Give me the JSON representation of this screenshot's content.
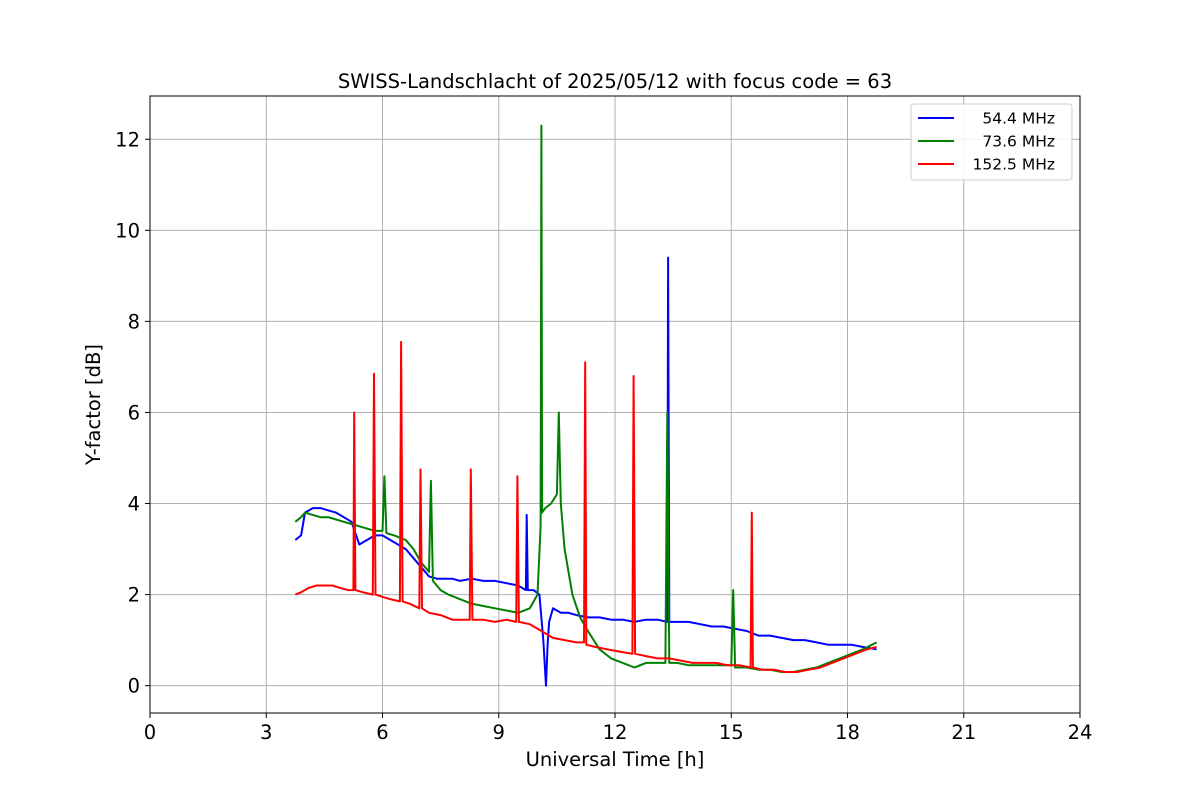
{
  "chart_data": {
    "type": "line",
    "title": "SWISS-Landschlacht of 2025/05/12 with focus code = 63",
    "xlabel": "Universal Time [h]",
    "ylabel": "Y-factor [dB]",
    "xlim": [
      0,
      24
    ],
    "ylim": [
      -0.6,
      12.95
    ],
    "xticks": [
      0,
      3,
      6,
      9,
      12,
      15,
      18,
      21,
      24
    ],
    "yticks": [
      0,
      2,
      4,
      6,
      8,
      10,
      12
    ],
    "grid": true,
    "legend_position": "top-right",
    "series": [
      {
        "name": "54.4 MHz",
        "color": "#0000ff",
        "x": [
          3.75,
          3.9,
          4.0,
          4.2,
          4.4,
          4.6,
          4.8,
          5.0,
          5.2,
          5.4,
          5.6,
          5.8,
          6.0,
          6.2,
          6.4,
          6.6,
          6.8,
          7.0,
          7.2,
          7.4,
          7.6,
          7.8,
          8.0,
          8.3,
          8.6,
          8.9,
          9.2,
          9.5,
          9.7,
          9.72,
          9.75,
          9.9,
          10.05,
          10.15,
          10.22,
          10.26,
          10.3,
          10.4,
          10.6,
          10.8,
          11.0,
          11.3,
          11.6,
          11.9,
          12.2,
          12.5,
          12.8,
          13.1,
          13.35,
          13.37,
          13.4,
          13.6,
          13.9,
          14.2,
          14.5,
          14.8,
          15.1,
          15.4,
          15.7,
          16.0,
          16.3,
          16.6,
          16.9,
          17.2,
          17.5,
          17.8,
          18.1,
          18.4,
          18.75
        ],
        "y": [
          3.2,
          3.3,
          3.8,
          3.9,
          3.9,
          3.85,
          3.8,
          3.7,
          3.6,
          3.1,
          3.2,
          3.3,
          3.3,
          3.2,
          3.1,
          3.0,
          2.8,
          2.6,
          2.4,
          2.35,
          2.35,
          2.35,
          2.3,
          2.35,
          2.3,
          2.3,
          2.25,
          2.2,
          2.1,
          3.75,
          2.1,
          2.1,
          2.0,
          1.0,
          0.0,
          0.9,
          1.4,
          1.7,
          1.6,
          1.6,
          1.55,
          1.5,
          1.5,
          1.45,
          1.45,
          1.4,
          1.45,
          1.45,
          1.4,
          9.4,
          1.4,
          1.4,
          1.4,
          1.35,
          1.3,
          1.3,
          1.25,
          1.2,
          1.1,
          1.1,
          1.05,
          1.0,
          1.0,
          0.95,
          0.9,
          0.9,
          0.9,
          0.85,
          0.8
        ]
      },
      {
        "name": "73.6 MHz",
        "color": "#008000",
        "x": [
          3.75,
          3.9,
          4.0,
          4.2,
          4.4,
          4.6,
          4.8,
          5.0,
          5.2,
          5.4,
          5.6,
          5.8,
          6.0,
          6.05,
          6.1,
          6.3,
          6.6,
          6.8,
          7.0,
          7.2,
          7.25,
          7.3,
          7.5,
          7.7,
          8.0,
          8.3,
          8.6,
          8.9,
          9.2,
          9.5,
          9.8,
          10.0,
          10.08,
          10.1,
          10.12,
          10.2,
          10.35,
          10.5,
          10.55,
          10.6,
          10.7,
          10.9,
          11.1,
          11.3,
          11.6,
          11.9,
          12.2,
          12.5,
          12.8,
          13.1,
          13.3,
          13.35,
          13.4,
          13.6,
          13.9,
          14.2,
          14.5,
          14.8,
          15.0,
          15.05,
          15.1,
          15.4,
          15.7,
          16.0,
          16.3,
          16.6,
          16.9,
          17.2,
          17.5,
          17.8,
          18.1,
          18.4,
          18.75
        ],
        "y": [
          3.6,
          3.7,
          3.8,
          3.75,
          3.7,
          3.7,
          3.65,
          3.6,
          3.55,
          3.5,
          3.45,
          3.4,
          3.4,
          4.6,
          3.35,
          3.3,
          3.2,
          3.0,
          2.7,
          2.5,
          4.5,
          2.3,
          2.1,
          2.0,
          1.9,
          1.8,
          1.75,
          1.7,
          1.65,
          1.6,
          1.7,
          2.0,
          3.5,
          12.3,
          3.8,
          3.9,
          4.0,
          4.2,
          6.0,
          4.0,
          3.0,
          2.0,
          1.5,
          1.2,
          0.8,
          0.6,
          0.5,
          0.4,
          0.5,
          0.5,
          0.5,
          6.0,
          0.5,
          0.5,
          0.45,
          0.45,
          0.45,
          0.45,
          0.45,
          2.1,
          0.4,
          0.4,
          0.35,
          0.35,
          0.3,
          0.3,
          0.35,
          0.4,
          0.5,
          0.6,
          0.7,
          0.8,
          0.95
        ]
      },
      {
        "name": "152.5 MHz",
        "color": "#ff0000",
        "x": [
          3.75,
          3.9,
          4.1,
          4.3,
          4.5,
          4.7,
          4.9,
          5.1,
          5.25,
          5.27,
          5.3,
          5.5,
          5.75,
          5.78,
          5.82,
          6.0,
          6.2,
          6.45,
          6.48,
          6.52,
          6.7,
          6.95,
          6.98,
          7.02,
          7.2,
          7.5,
          7.8,
          8.1,
          8.25,
          8.28,
          8.32,
          8.6,
          8.9,
          9.2,
          9.45,
          9.48,
          9.52,
          9.8,
          10.1,
          10.4,
          10.7,
          11.0,
          11.2,
          11.23,
          11.26,
          11.5,
          11.8,
          12.1,
          12.45,
          12.48,
          12.52,
          12.8,
          13.1,
          13.4,
          13.7,
          14.0,
          14.3,
          14.6,
          14.9,
          15.2,
          15.5,
          15.53,
          15.56,
          15.8,
          16.1,
          16.4,
          16.7,
          17.0,
          17.3,
          17.6,
          17.9,
          18.2,
          18.5,
          18.75
        ],
        "y": [
          2.0,
          2.05,
          2.15,
          2.2,
          2.2,
          2.2,
          2.15,
          2.1,
          2.1,
          6.0,
          2.1,
          2.05,
          2.0,
          6.85,
          2.0,
          1.95,
          1.9,
          1.85,
          7.55,
          1.85,
          1.8,
          1.7,
          4.75,
          1.7,
          1.6,
          1.55,
          1.45,
          1.45,
          1.45,
          4.75,
          1.45,
          1.45,
          1.4,
          1.45,
          1.4,
          4.6,
          1.4,
          1.35,
          1.2,
          1.05,
          1.0,
          0.95,
          0.95,
          7.1,
          0.9,
          0.85,
          0.8,
          0.75,
          0.7,
          6.8,
          0.7,
          0.65,
          0.6,
          0.6,
          0.55,
          0.5,
          0.5,
          0.5,
          0.45,
          0.45,
          0.4,
          3.8,
          0.4,
          0.35,
          0.35,
          0.3,
          0.3,
          0.35,
          0.4,
          0.5,
          0.6,
          0.7,
          0.8,
          0.85
        ]
      }
    ]
  }
}
